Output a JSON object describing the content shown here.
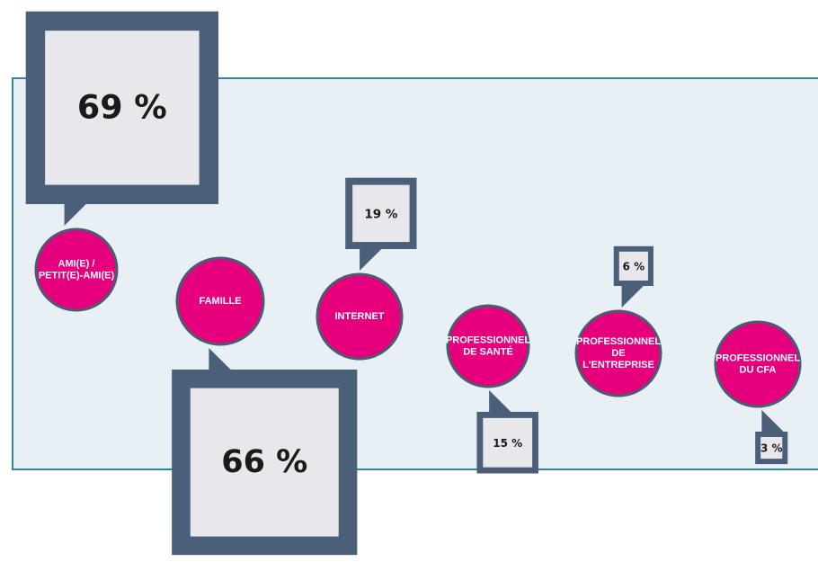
{
  "chart_data": {
    "type": "callout",
    "categories": [
      [
        "AMI(E) /",
        "PETIT(E)-AMI(E)"
      ],
      [
        "FAMILLE"
      ],
      [
        "INTERNET"
      ],
      [
        "PROFESSIONNEL",
        "DE SANTÉ"
      ],
      [
        "PROFESSIONNEL",
        "DE",
        "L'ENTREPRISE"
      ],
      [
        "PROFESSIONNEL",
        "DU CFA"
      ]
    ],
    "values": [
      69,
      66,
      19,
      15,
      6,
      3
    ],
    "value_labels": [
      "69 %",
      "66 %",
      "19 %",
      "15 %",
      "6 %",
      "3 %"
    ],
    "color": "#e6007e",
    "box_color": "#4b5f78"
  }
}
